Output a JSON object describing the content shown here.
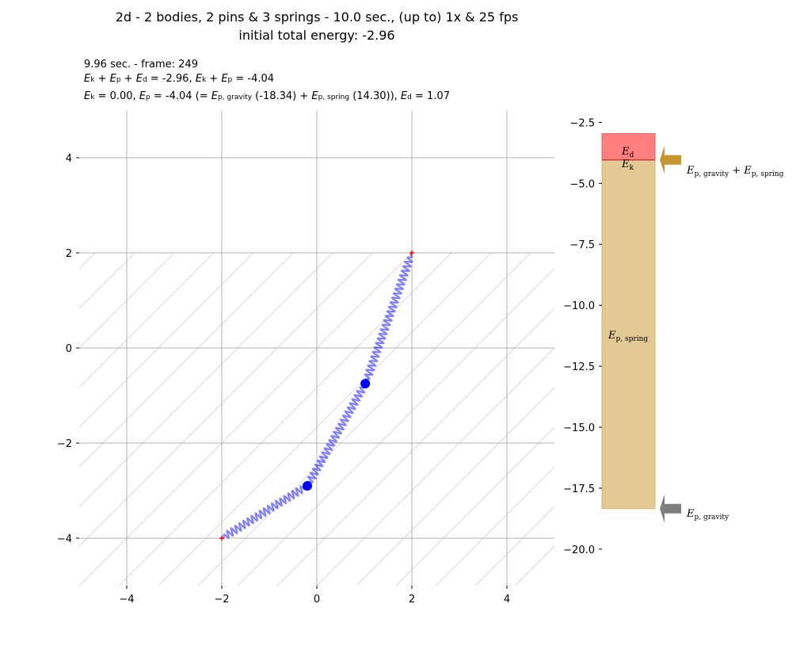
{
  "title": {
    "line1": "2d - 2 bodies, 2 pins & 3 springs - 10.0 sec., (up to) 1x & 25 fps",
    "line2": "initial total energy: -2.96"
  },
  "info": {
    "time": "9.96 sec. - frame: 249",
    "line2": {
      "prefix": "",
      "sum_label": "E_k + E_p + E_d",
      "sum_value": " = -2.96, ",
      "kp_label": "E_k + E_p",
      "kp_value": " = -4.04"
    },
    "line3": {
      "ek_value": " = 0.00, ",
      "ep_value": " = -4.04 (= ",
      "grav_value": " (-18.34) + ",
      "spring_value": " (14.30)), ",
      "ed_value": " = 1.07"
    }
  },
  "chart_data": [
    {
      "type": "scatter",
      "xlim": [
        -5,
        5
      ],
      "ylim": [
        -5,
        5
      ],
      "xticks": [
        "−4",
        "−2",
        "0",
        "2",
        "4"
      ],
      "yticks": [
        "4",
        "2",
        "0",
        "−2",
        "−4"
      ],
      "xtick_values": [
        -4,
        -2,
        0,
        2,
        4
      ],
      "ytick_values": [
        4,
        2,
        0,
        -2,
        -4
      ],
      "grid": true,
      "pins": [
        [
          -2,
          -4
        ],
        [
          2,
          2
        ]
      ],
      "bodies": [
        [
          -0.2,
          -2.9
        ],
        [
          1.02,
          -0.75
        ]
      ],
      "springs": [
        {
          "from": [
            -2,
            -4
          ],
          "to": [
            -0.2,
            -2.9
          ]
        },
        {
          "from": [
            -0.2,
            -2.9
          ],
          "to": [
            1.02,
            -0.75
          ]
        },
        {
          "from": [
            1.02,
            -0.75
          ],
          "to": [
            2,
            2
          ]
        }
      ],
      "wall_hatch_below_y": 2,
      "colors": {
        "body": "#0000ff",
        "spring": "#0000ff",
        "pin": "#ff0000",
        "grid": "#b0b0b0",
        "hatch": "#d9d9d9"
      }
    },
    {
      "type": "bar",
      "ylim": [
        -21.5,
        -2
      ],
      "yticks": [
        "−2.5",
        "−5.0",
        "−7.5",
        "−10.0",
        "−12.5",
        "−15.0",
        "−17.5",
        "−20.0"
      ],
      "ytick_values": [
        -2.5,
        -5.0,
        -7.5,
        -10.0,
        -12.5,
        -15.0,
        -17.5,
        -20.0
      ],
      "segments": [
        {
          "name": "E_p,spring",
          "from": -18.34,
          "to": -4.04,
          "color": "#e3c994",
          "edge": "#d8b878"
        },
        {
          "name": "E_d",
          "from": -4.04,
          "to": -2.96,
          "color": "#ff7f7f",
          "edge": "#e06060"
        }
      ],
      "ek_value": 0.0,
      "arrows": [
        {
          "name": "E_p,gravity + E_p,spring",
          "value": -4.04,
          "color": "#c8962e"
        },
        {
          "name": "E_p,gravity",
          "value": -18.34,
          "color": "#7f7f7f"
        }
      ]
    }
  ]
}
